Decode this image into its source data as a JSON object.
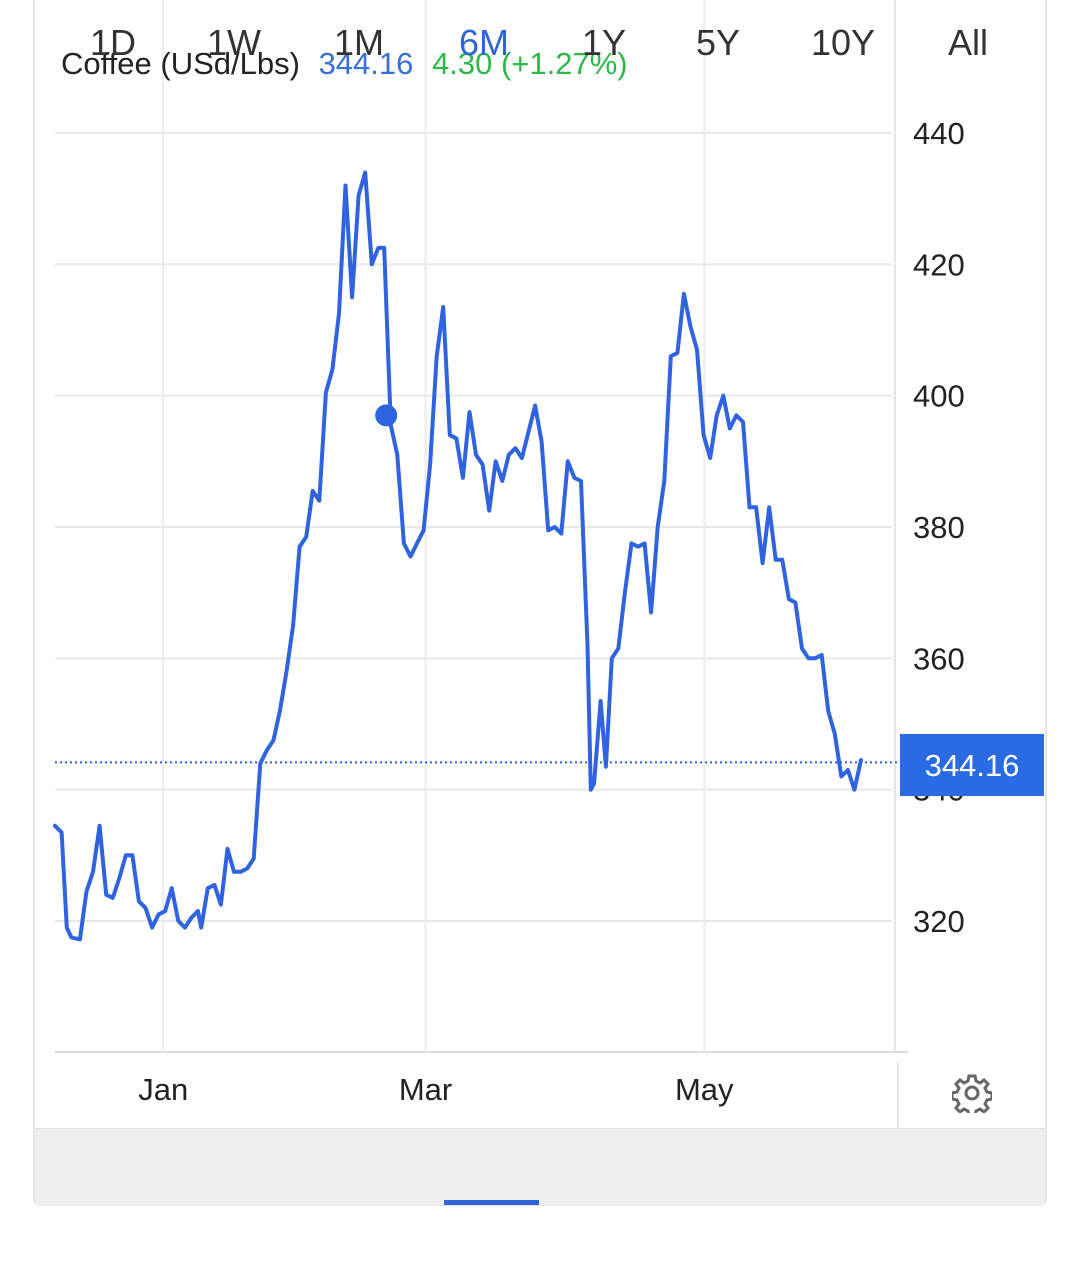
{
  "header": {
    "instrument": "Coffee (USd/Lbs)",
    "price": "344.16",
    "change": "4.30 (+1.27%)"
  },
  "price_tag": "344.16",
  "settings_icon": "gear-icon",
  "tabs": [
    {
      "label": "1D",
      "active": false
    },
    {
      "label": "1W",
      "active": false
    },
    {
      "label": "1M",
      "active": false
    },
    {
      "label": "6M",
      "active": true
    },
    {
      "label": "1Y",
      "active": false
    },
    {
      "label": "5Y",
      "active": false
    },
    {
      "label": "10Y",
      "active": false
    },
    {
      "label": "All",
      "active": false
    }
  ],
  "colors": {
    "line": "#2f63e0",
    "accent": "#2f63d6",
    "change_positive": "#2fb84a",
    "price_tag_bg": "#2a6be4"
  },
  "chart_data": {
    "type": "line",
    "title": "Coffee (USd/Lbs)",
    "ylim": [
      300,
      450
    ],
    "y_ticks": [
      320,
      340,
      360,
      380,
      400,
      420,
      440
    ],
    "x_ticks": [
      {
        "label": "Jan",
        "x": 16.5
      },
      {
        "label": "Mar",
        "x": 56.5
      },
      {
        "label": "May",
        "x": 99.0
      }
    ],
    "x_domain": [
      0,
      127
    ],
    "grid": true,
    "current_value": 344.16,
    "marker": {
      "x": 50.5,
      "y": 397
    },
    "series": [
      {
        "values": [
          [
            0.0,
            334.5
          ],
          [
            1.0,
            333.5
          ],
          [
            1.8,
            319.0
          ],
          [
            2.5,
            317.5
          ],
          [
            3.8,
            317.2
          ],
          [
            4.8,
            324.5
          ],
          [
            5.8,
            327.5
          ],
          [
            6.8,
            334.5
          ],
          [
            7.8,
            324.0
          ],
          [
            8.8,
            323.5
          ],
          [
            9.8,
            326.5
          ],
          [
            10.8,
            330.0
          ],
          [
            11.8,
            330.0
          ],
          [
            12.8,
            323.0
          ],
          [
            13.8,
            322.0
          ],
          [
            14.8,
            319.0
          ],
          [
            15.8,
            321.0
          ],
          [
            16.8,
            321.5
          ],
          [
            17.8,
            325.0
          ],
          [
            18.8,
            320.0
          ],
          [
            19.8,
            319.0
          ],
          [
            20.8,
            320.5
          ],
          [
            21.8,
            321.5
          ],
          [
            22.3,
            319.0
          ],
          [
            23.3,
            325.0
          ],
          [
            24.3,
            325.5
          ],
          [
            25.3,
            322.5
          ],
          [
            26.3,
            331.0
          ],
          [
            27.3,
            327.5
          ],
          [
            28.3,
            327.5
          ],
          [
            29.3,
            328.0
          ],
          [
            30.3,
            329.5
          ],
          [
            31.3,
            344.0
          ],
          [
            32.3,
            346.0
          ],
          [
            33.3,
            347.5
          ],
          [
            34.3,
            352.0
          ],
          [
            35.3,
            358.0
          ],
          [
            36.3,
            365.0
          ],
          [
            37.3,
            377.0
          ],
          [
            38.3,
            378.5
          ],
          [
            39.3,
            385.5
          ],
          [
            40.3,
            384.0
          ],
          [
            41.3,
            400.5
          ],
          [
            42.3,
            404.0
          ],
          [
            43.3,
            412.5
          ],
          [
            44.3,
            432.0
          ],
          [
            45.3,
            415.0
          ],
          [
            46.3,
            430.5
          ],
          [
            47.3,
            434.0
          ],
          [
            48.3,
            420.0
          ],
          [
            49.3,
            422.5
          ],
          [
            50.2,
            422.5
          ],
          [
            51.2,
            395.5
          ],
          [
            52.2,
            391.0
          ],
          [
            53.2,
            377.5
          ],
          [
            54.2,
            375.5
          ],
          [
            55.2,
            377.5
          ],
          [
            56.2,
            379.5
          ],
          [
            57.2,
            389.5
          ],
          [
            58.2,
            406.0
          ],
          [
            59.2,
            413.5
          ],
          [
            60.2,
            394.0
          ],
          [
            61.2,
            393.5
          ],
          [
            62.2,
            387.5
          ],
          [
            63.2,
            397.5
          ],
          [
            64.2,
            391.0
          ],
          [
            65.2,
            389.5
          ],
          [
            66.2,
            382.5
          ],
          [
            67.2,
            390.0
          ],
          [
            68.2,
            387.0
          ],
          [
            69.2,
            391.0
          ],
          [
            70.2,
            392.0
          ],
          [
            71.2,
            390.5
          ],
          [
            72.2,
            394.5
          ],
          [
            73.2,
            398.5
          ],
          [
            74.2,
            393.0
          ],
          [
            75.2,
            379.5
          ],
          [
            76.2,
            380.0
          ],
          [
            77.2,
            379.0
          ],
          [
            78.2,
            390.0
          ],
          [
            79.2,
            387.5
          ],
          [
            80.2,
            387.0
          ],
          [
            81.2,
            362.0
          ],
          [
            81.7,
            340.0
          ],
          [
            82.2,
            341.0
          ],
          [
            83.2,
            353.5
          ],
          [
            84.0,
            343.5
          ],
          [
            84.9,
            360.0
          ],
          [
            85.9,
            361.5
          ],
          [
            86.9,
            370.0
          ],
          [
            87.9,
            377.5
          ],
          [
            88.9,
            377.0
          ],
          [
            89.9,
            377.5
          ],
          [
            90.9,
            367.0
          ],
          [
            91.9,
            380.0
          ],
          [
            92.9,
            387.0
          ],
          [
            93.9,
            406.0
          ],
          [
            94.9,
            406.5
          ],
          [
            95.9,
            415.5
          ],
          [
            96.9,
            410.5
          ],
          [
            97.9,
            407.0
          ],
          [
            98.9,
            394.0
          ],
          [
            99.9,
            390.5
          ],
          [
            100.9,
            397.0
          ],
          [
            101.9,
            400.0
          ],
          [
            102.9,
            395.0
          ],
          [
            103.9,
            397.0
          ],
          [
            104.9,
            396.0
          ],
          [
            105.9,
            383.0
          ],
          [
            106.9,
            383.0
          ],
          [
            107.9,
            374.5
          ],
          [
            108.9,
            383.0
          ],
          [
            109.9,
            375.0
          ],
          [
            110.9,
            375.0
          ],
          [
            111.9,
            369.0
          ],
          [
            112.9,
            368.5
          ],
          [
            113.9,
            361.5
          ],
          [
            114.9,
            360.0
          ],
          [
            115.9,
            360.0
          ],
          [
            116.9,
            360.5
          ],
          [
            117.9,
            352.0
          ],
          [
            118.9,
            348.5
          ],
          [
            119.9,
            342.0
          ],
          [
            120.9,
            343.0
          ],
          [
            121.9,
            340.0
          ],
          [
            122.9,
            344.5
          ]
        ]
      }
    ]
  }
}
